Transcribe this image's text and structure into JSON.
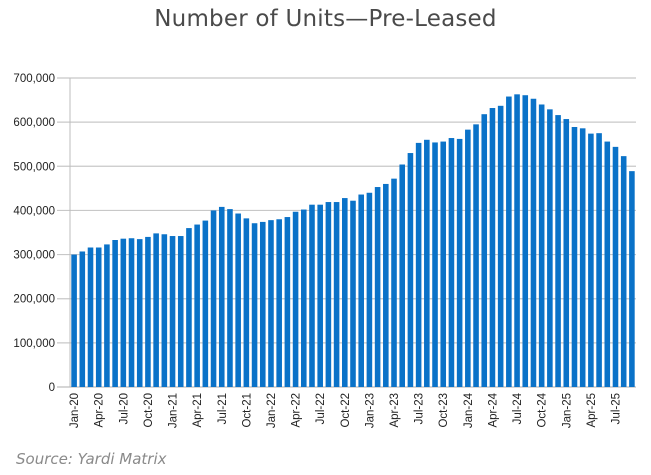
{
  "chart_data": {
    "type": "bar",
    "title": "Number of Units—Pre-Leased",
    "source": "Source: Yardi Matrix",
    "xlabel": "",
    "ylabel": "",
    "ylim": [
      0,
      700000
    ],
    "yticks": [
      0,
      100000,
      200000,
      300000,
      400000,
      500000,
      600000,
      700000
    ],
    "ytick_labels": [
      "0",
      "100,000",
      "200,000",
      "300,000",
      "400,000",
      "500,000",
      "600,000",
      "700,000"
    ],
    "grid": true,
    "bar_color": "#0a72c8",
    "categories": [
      "Jan-20",
      "Feb-20",
      "Mar-20",
      "Apr-20",
      "May-20",
      "Jun-20",
      "Jul-20",
      "Aug-20",
      "Sep-20",
      "Oct-20",
      "Nov-20",
      "Dec-20",
      "Jan-21",
      "Feb-21",
      "Mar-21",
      "Apr-21",
      "May-21",
      "Jun-21",
      "Jul-21",
      "Aug-21",
      "Sep-21",
      "Oct-21",
      "Nov-21",
      "Dec-21",
      "Jan-22",
      "Feb-22",
      "Mar-22",
      "Apr-22",
      "May-22",
      "Jun-22",
      "Jul-22",
      "Aug-22",
      "Sep-22",
      "Oct-22",
      "Nov-22",
      "Dec-22",
      "Jan-23",
      "Feb-23",
      "Mar-23",
      "Apr-23",
      "May-23",
      "Jun-23",
      "Jul-23",
      "Aug-23",
      "Sep-23",
      "Oct-23",
      "Nov-23",
      "Dec-23",
      "Jan-24",
      "Feb-24",
      "Mar-24",
      "Apr-24",
      "May-24",
      "Jun-24",
      "Jul-24",
      "Aug-24",
      "Sep-24",
      "Oct-24",
      "Nov-24",
      "Dec-24",
      "Jan-25",
      "Feb-25",
      "Mar-25",
      "Apr-25",
      "May-25",
      "Jun-25",
      "Jul-25",
      "Aug-25",
      "Sep-25"
    ],
    "xtick_labels": [
      "Jan-20",
      "Apr-20",
      "Jul-20",
      "Oct-20",
      "Jan-21",
      "Apr-21",
      "Jul-21",
      "Oct-21",
      "Jan-22",
      "Apr-22",
      "Jul-22",
      "Oct-22",
      "Jan-23",
      "Apr-23",
      "Jul-23",
      "Oct-23",
      "Jan-24",
      "Apr-24",
      "Jul-24",
      "Oct-24",
      "Jan-25",
      "Apr-25",
      "Jul-25"
    ],
    "values": [
      300000,
      307000,
      316000,
      316000,
      323000,
      333000,
      336000,
      337000,
      335000,
      340000,
      348000,
      346000,
      342000,
      342000,
      360000,
      368000,
      377000,
      400000,
      408000,
      403000,
      393000,
      382000,
      371000,
      374000,
      378000,
      380000,
      385000,
      397000,
      402000,
      413000,
      413000,
      419000,
      419000,
      428000,
      422000,
      436000,
      440000,
      453000,
      460000,
      472000,
      504000,
      530000,
      553000,
      560000,
      554000,
      556000,
      564000,
      562000,
      583000,
      595000,
      618000,
      632000,
      637000,
      658000,
      663000,
      661000,
      653000,
      640000,
      629000,
      616000,
      607000,
      589000,
      586000,
      574000,
      575000,
      556000,
      544000,
      523000,
      489000
    ]
  }
}
